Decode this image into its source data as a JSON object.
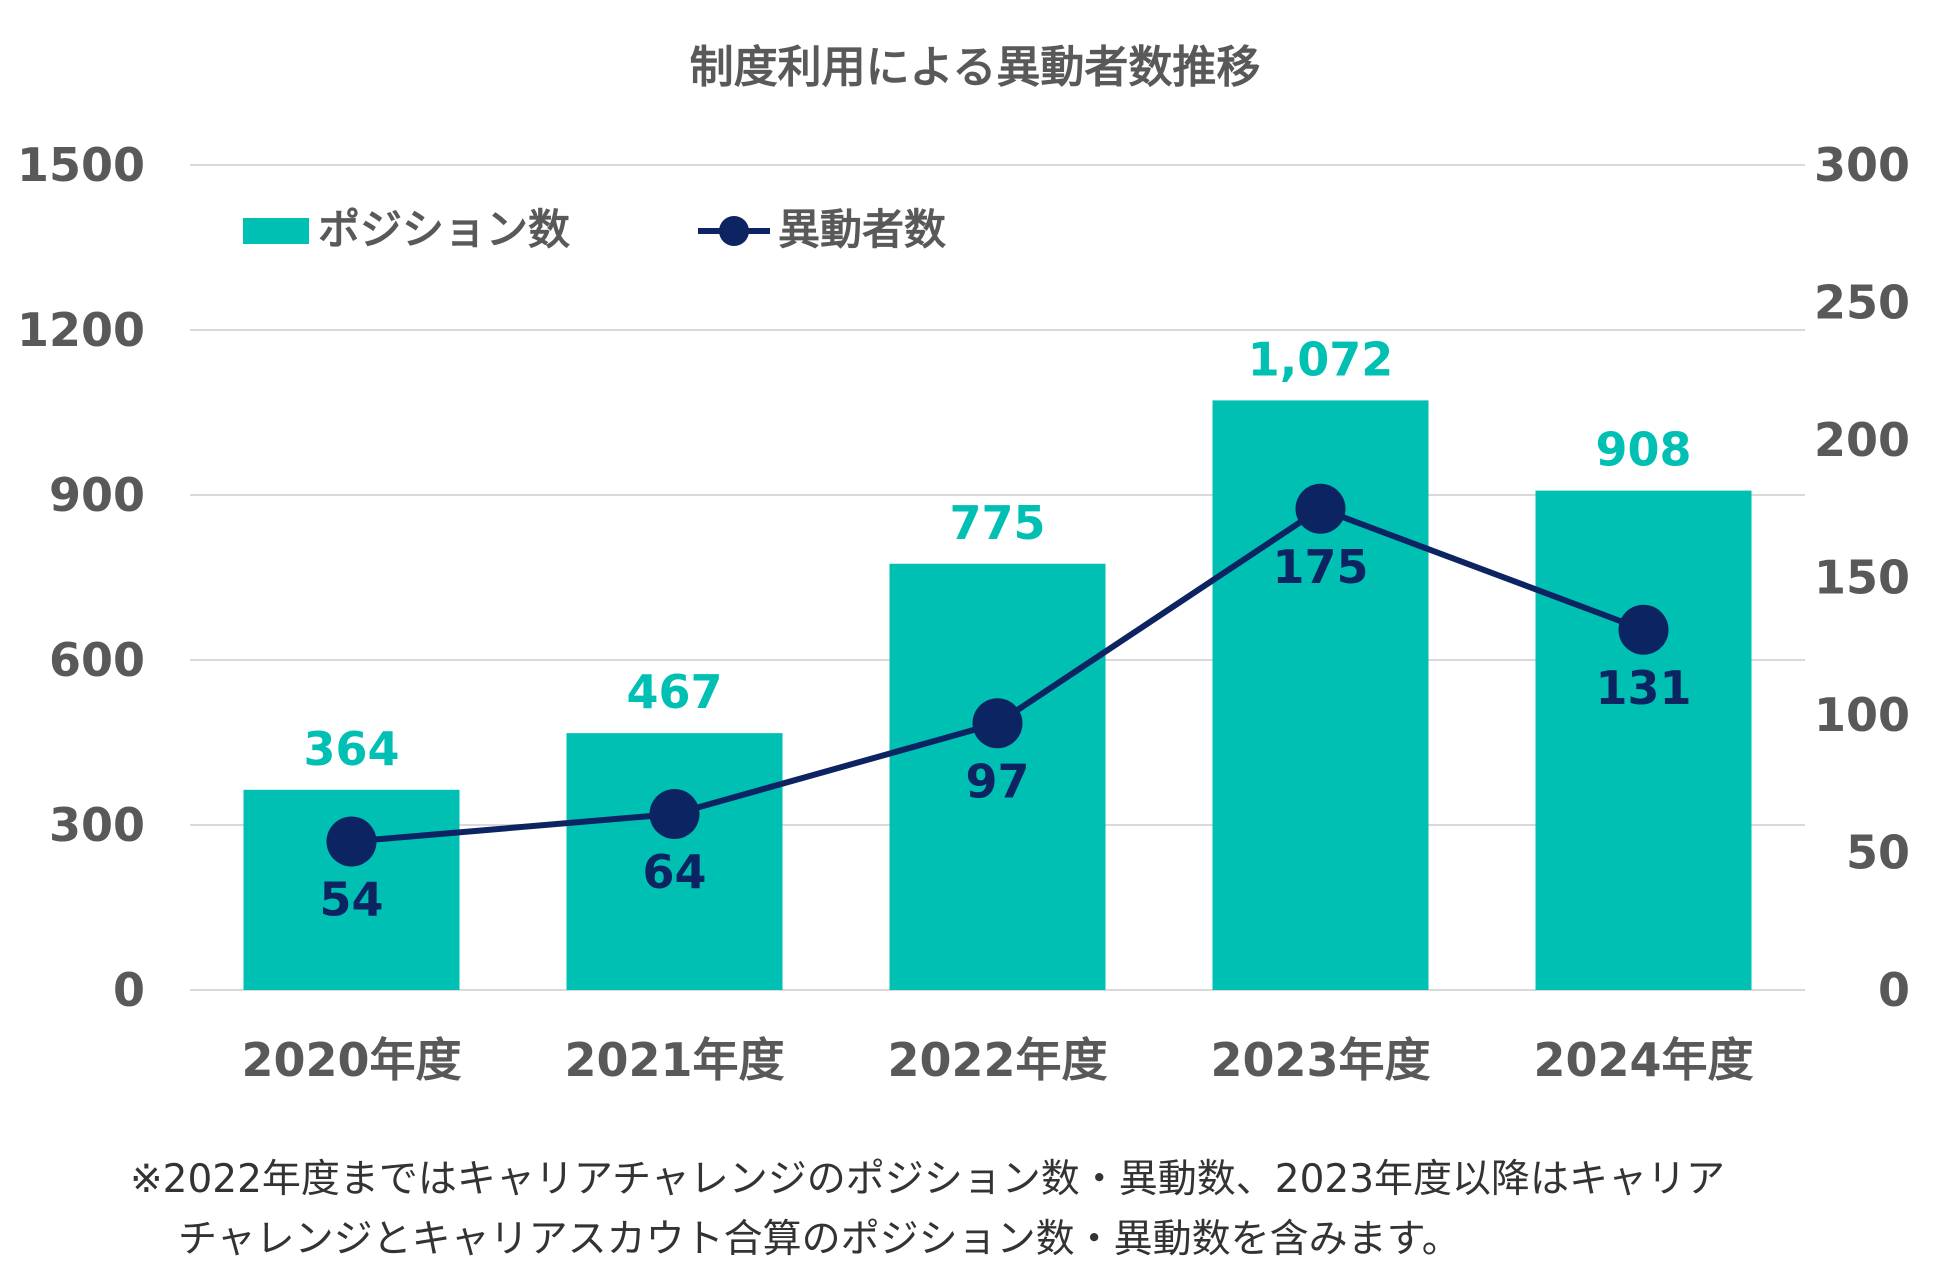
{
  "chart_data": {
    "type": "bar",
    "title": "制度利用による異動者数推移",
    "categories": [
      "2020年度",
      "2021年度",
      "2022年度",
      "2023年度",
      "2024年度"
    ],
    "series": [
      {
        "name": "ポジション数",
        "type": "bar",
        "axis": "left",
        "values": [
          364,
          467,
          775,
          1072,
          908
        ],
        "labels": [
          "364",
          "467",
          "775",
          "1,072",
          "908"
        ]
      },
      {
        "name": "異動者数",
        "type": "line",
        "axis": "right",
        "values": [
          54,
          64,
          97,
          175,
          131
        ],
        "labels": [
          "54",
          "64",
          "97",
          "175",
          "131"
        ]
      }
    ],
    "y_left": {
      "min": 0,
      "max": 1500,
      "ticks": [
        "0",
        "300",
        "600",
        "900",
        "1200",
        "1500"
      ]
    },
    "y_right": {
      "min": 0,
      "max": 300,
      "ticks": [
        "0",
        "50",
        "100",
        "150",
        "200",
        "250",
        "300"
      ]
    },
    "legend_position": "top-left",
    "grid": true
  },
  "colors": {
    "bar": "#00BFB3",
    "line": "#0C2461",
    "axis_text": "#595959",
    "grid": "#D9D9D9",
    "note": "#333333"
  },
  "notes": {
    "line1": "※2022年度まではキャリアチャレンジのポジション数・異動数、2023年度以降はキャリア",
    "line2": "チャレンジとキャリアスカウト合算のポジション数・異動数を含みます。"
  }
}
